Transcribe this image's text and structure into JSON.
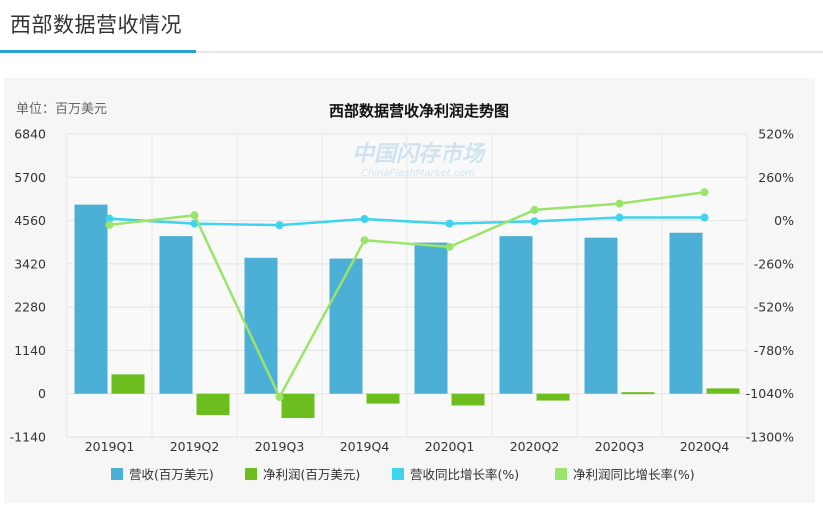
{
  "page": {
    "title": "西部数据营收情况"
  },
  "watermark": {
    "line1": "中国闪存市场",
    "line2": "ChinaFlashMarket.com"
  },
  "colors": {
    "revenue": "#4bafd6",
    "net_profit": "#6cbd1e",
    "revenue_yoy": "#3fd4ee",
    "profit_yoy": "#9be46a",
    "accent": "#2a9fd6"
  },
  "chart_data": {
    "type": "bar",
    "title": "西部数据营收净利润走势图",
    "unit_label": "单位：百万美元",
    "categories": [
      "2019Q1",
      "2019Q2",
      "2019Q3",
      "2019Q4",
      "2020Q1",
      "2020Q2",
      "2020Q3",
      "2020Q4"
    ],
    "y_left": {
      "ticks": [
        "6840",
        "5700",
        "4560",
        "3420",
        "2280",
        "1140",
        "0",
        "-1140"
      ],
      "lim": [
        -1140,
        6840
      ]
    },
    "y_right": {
      "ticks": [
        "520%",
        "260%",
        "0%",
        "-260%",
        "-520%",
        "-780%",
        "-1040%",
        "-1300%"
      ],
      "lim": [
        -1300,
        520
      ]
    },
    "series": [
      {
        "name": "营收(百万美元)",
        "type": "bar",
        "axis": "left",
        "values": [
          4980,
          4150,
          3580,
          3560,
          3980,
          4150,
          4110,
          4240
        ]
      },
      {
        "name": "净利润(百万美元)",
        "type": "bar",
        "axis": "left",
        "values": [
          510,
          -560,
          -640,
          -260,
          -310,
          -180,
          40,
          140
        ]
      },
      {
        "name": "营收同比增长率(%)",
        "type": "line",
        "axis": "left",
        "values": [
          4610,
          4480,
          4440,
          4600,
          4480,
          4540,
          4640,
          4640
        ]
      },
      {
        "name": "净利润同比增长率(%)",
        "type": "line",
        "axis": "right",
        "values": [
          -26,
          32,
          -1060,
          -118,
          -158,
          64,
          102,
          170
        ]
      }
    ]
  }
}
